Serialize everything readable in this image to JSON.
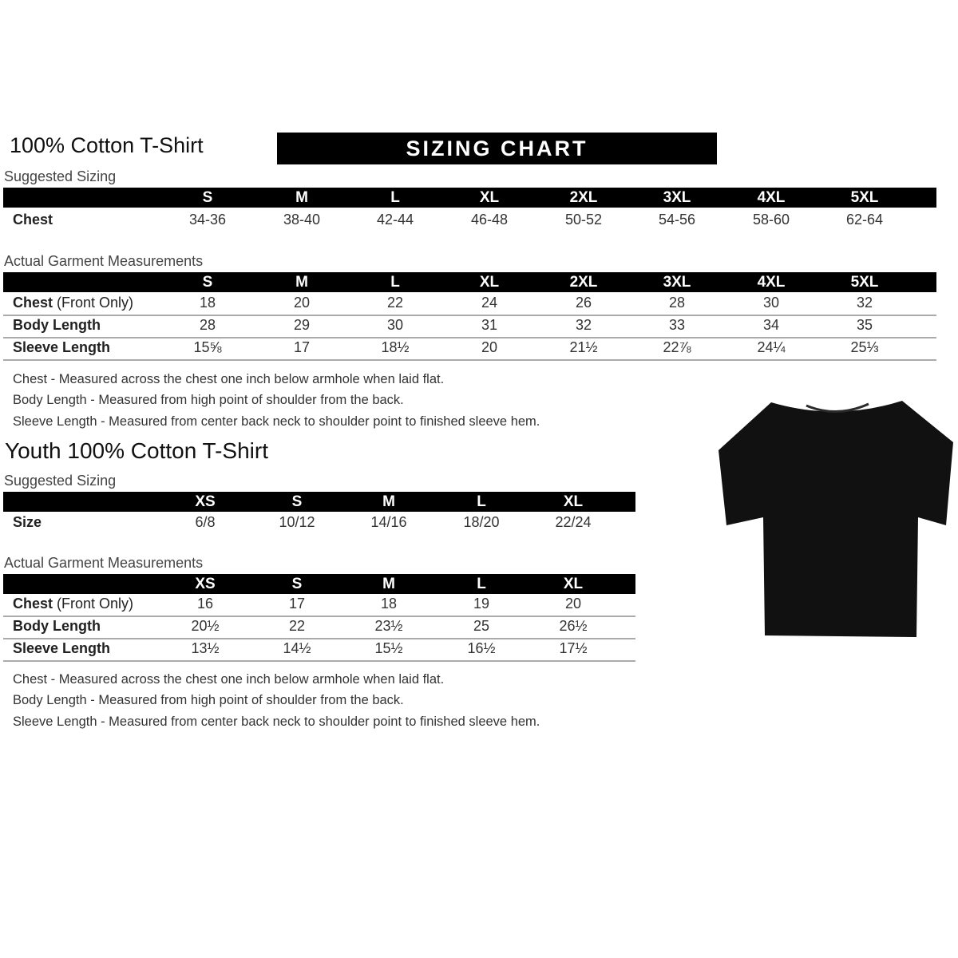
{
  "adult": {
    "title": "100% Cotton T-Shirt",
    "banner": "SIZING CHART",
    "suggested_label": "Suggested Sizing",
    "sizes": [
      "S",
      "M",
      "L",
      "XL",
      "2XL",
      "3XL",
      "4XL",
      "5XL"
    ],
    "suggested_rows": [
      {
        "label": "Chest",
        "values": [
          "34-36",
          "38-40",
          "42-44",
          "46-48",
          "50-52",
          "54-56",
          "58-60",
          "62-64"
        ]
      }
    ],
    "actual_label": "Actual Garment Measurements",
    "actual_rows": [
      {
        "label": "Chest",
        "label_note": "(Front Only)",
        "values": [
          "18",
          "20",
          "22",
          "24",
          "26",
          "28",
          "30",
          "32"
        ]
      },
      {
        "label": "Body Length",
        "values": [
          "28",
          "29",
          "30",
          "31",
          "32",
          "33",
          "34",
          "35"
        ]
      },
      {
        "label": "Sleeve Length",
        "values": [
          "15⅝",
          "17",
          "18½",
          "20",
          "21½",
          "22⅞",
          "24¼",
          "25⅓"
        ]
      }
    ],
    "notes": [
      "Chest - Measured across the chest one inch below armhole when laid flat.",
      "Body Length - Measured from high point of shoulder from the back.",
      "Sleeve Length - Measured from center back neck to shoulder point to finished sleeve hem."
    ]
  },
  "youth": {
    "title": "Youth 100% Cotton T-Shirt",
    "suggested_label": "Suggested Sizing",
    "sizes": [
      "XS",
      "S",
      "M",
      "L",
      "XL"
    ],
    "suggested_rows": [
      {
        "label": "Size",
        "values": [
          "6/8",
          "10/12",
          "14/16",
          "18/20",
          "22/24"
        ]
      }
    ],
    "actual_label": "Actual Garment Measurements",
    "actual_rows": [
      {
        "label": "Chest",
        "label_note": "(Front Only)",
        "values": [
          "16",
          "17",
          "18",
          "19",
          "20"
        ]
      },
      {
        "label": "Body Length",
        "values": [
          "20½",
          "22",
          "23½",
          "25",
          "26½"
        ]
      },
      {
        "label": "Sleeve Length",
        "values": [
          "13½",
          "14½",
          "15½",
          "16½",
          "17½"
        ]
      }
    ],
    "notes": [
      "Chest - Measured across the chest one inch below armhole when laid flat.",
      "Body Length - Measured from high point of shoulder from the back.",
      "Sleeve Length - Measured from center back neck to shoulder point to finished sleeve hem."
    ]
  },
  "image": {
    "icon": "black-tshirt-icon",
    "color": "#111111"
  }
}
